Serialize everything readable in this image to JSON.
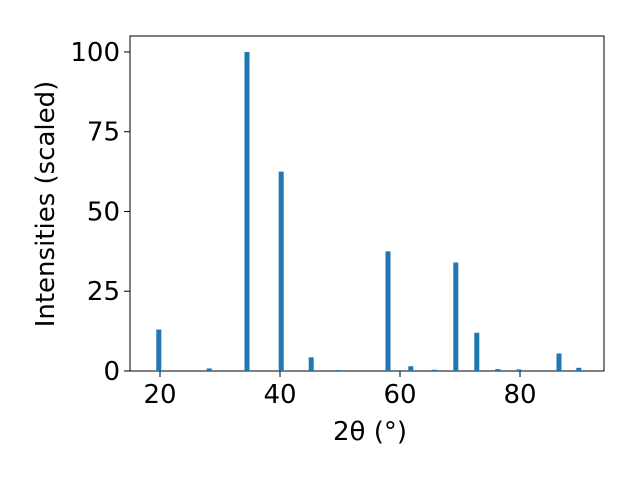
{
  "chart_data": {
    "type": "bar",
    "x": [
      19.8,
      28.2,
      34.5,
      40.2,
      45.2,
      49.7,
      58.0,
      61.8,
      65.7,
      69.3,
      72.8,
      76.3,
      79.8,
      86.5,
      89.8
    ],
    "values": [
      13,
      0.8,
      100,
      62.5,
      4.3,
      0.3,
      37.5,
      1.5,
      0.4,
      34,
      12,
      0.6,
      0.5,
      5.5,
      1.0
    ],
    "color": "#1f77b4",
    "xlabel": "2θ (°)",
    "ylabel": "Intensities (scaled)",
    "xlim": [
      15,
      94
    ],
    "xticks": [
      20,
      40,
      60,
      80
    ],
    "ylim": [
      0,
      105
    ],
    "yticks": [
      0,
      25,
      50,
      75,
      100
    ]
  }
}
